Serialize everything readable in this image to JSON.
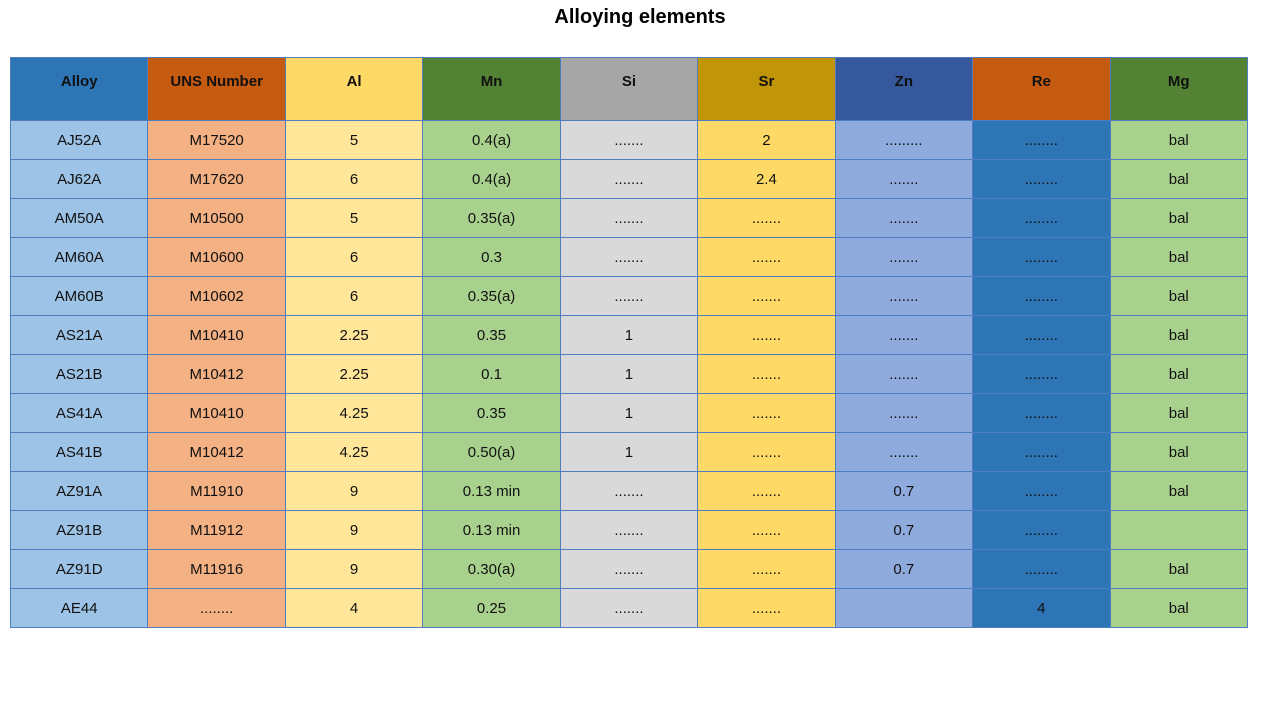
{
  "title": "Alloying elements",
  "chart_data": {
    "type": "table",
    "title": "Alloying elements",
    "columns": [
      "Alloy",
      "UNS Number",
      "Al",
      "Mn",
      "Si",
      "Sr",
      "Zn",
      "Re",
      "Mg"
    ],
    "rows": [
      [
        "AJ52A",
        "M17520",
        "5",
        "0.4(a)",
        ".......",
        "2",
        ".........",
        "........",
        "bal"
      ],
      [
        "AJ62A",
        "M17620",
        "6",
        "0.4(a)",
        ".......",
        "2.4",
        ".......",
        "........",
        "bal"
      ],
      [
        "AM50A",
        "M10500",
        "5",
        "0.35(a)",
        ".......",
        ".......",
        ".......",
        "........",
        "bal"
      ],
      [
        "AM60A",
        "M10600",
        "6",
        "0.3",
        ".......",
        ".......",
        ".......",
        "........",
        "bal"
      ],
      [
        "AM60B",
        "M10602",
        "6",
        "0.35(a)",
        ".......",
        ".......",
        ".......",
        "........",
        "bal"
      ],
      [
        "AS21A",
        "M10410",
        "2.25",
        "0.35",
        "1",
        ".......",
        ".......",
        "........",
        "bal"
      ],
      [
        "AS21B",
        "M10412",
        "2.25",
        "0.1",
        "1",
        ".......",
        ".......",
        "........",
        "bal"
      ],
      [
        "AS41A",
        "M10410",
        "4.25",
        "0.35",
        "1",
        ".......",
        ".......",
        "........",
        "bal"
      ],
      [
        "AS41B",
        "M10412",
        "4.25",
        "0.50(a)",
        "1",
        ".......",
        ".......",
        "........",
        "bal"
      ],
      [
        "AZ91A",
        "M11910",
        "9",
        "0.13 min",
        ".......",
        ".......",
        "0.7",
        "........",
        "bal"
      ],
      [
        "AZ91B",
        "M11912",
        "9",
        "0.13 min",
        ".......",
        ".......",
        "0.7",
        "........",
        ""
      ],
      [
        "AZ91D",
        "M11916",
        "9",
        "0.30(a)",
        ".......",
        ".......",
        "0.7",
        "........",
        "bal"
      ],
      [
        "AE44",
        "........",
        "4",
        "0.25",
        ".......",
        ".......",
        "",
        "4",
        "bal"
      ]
    ],
    "header_colors": [
      "#2E75B6",
      "#C55A11",
      "#FFD966",
      "#548235",
      "#A6A6A6",
      "#C09507",
      "#35599C",
      "#C55A11",
      "#548235"
    ],
    "cell_colors": [
      "#9DC3E6",
      "#F4B183",
      "#FFE699",
      "#A9D18E",
      "#D9D9D9",
      "#FFD966",
      "#8FAADC",
      "#2E75B6",
      "#A9D18E"
    ],
    "border_color": "#4F7DBF",
    "text_color": "#111111"
  }
}
